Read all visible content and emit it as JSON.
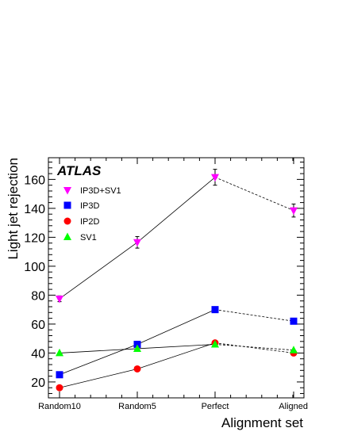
{
  "chart_data": {
    "type": "line",
    "categories": [
      "Random10",
      "Random5",
      "Perfect",
      "Aligned"
    ],
    "xlabel": "Alignment set",
    "ylabel": "Light jet rejection",
    "ylim": [
      9,
      175
    ],
    "yticks": [
      20,
      40,
      60,
      80,
      100,
      120,
      140,
      160
    ],
    "annotation": "ATLAS",
    "legend_position": "top-left",
    "grid": false,
    "series": [
      {
        "name": "IP3D+SV1",
        "values": [
          77.5,
          116.5,
          161.5,
          138.5
        ],
        "errors": [
          2,
          4,
          5.5,
          4.5
        ],
        "marker": "triangle-down",
        "color": "#ff00ff"
      },
      {
        "name": "IP3D",
        "values": [
          25,
          46,
          70,
          62
        ],
        "errors": [
          0.6,
          0.8,
          1.2,
          1.0
        ],
        "marker": "square",
        "color": "#0000ff"
      },
      {
        "name": "IP2D",
        "values": [
          16,
          29,
          47,
          40
        ],
        "errors": [
          0.4,
          0.6,
          0.8,
          0.7
        ],
        "marker": "circle",
        "color": "#ff0000"
      },
      {
        "name": "SV1",
        "values": [
          40,
          43,
          46,
          42
        ],
        "errors": [
          0.6,
          0.7,
          0.8,
          0.7
        ],
        "marker": "triangle-up",
        "color": "#00ff00"
      }
    ]
  }
}
